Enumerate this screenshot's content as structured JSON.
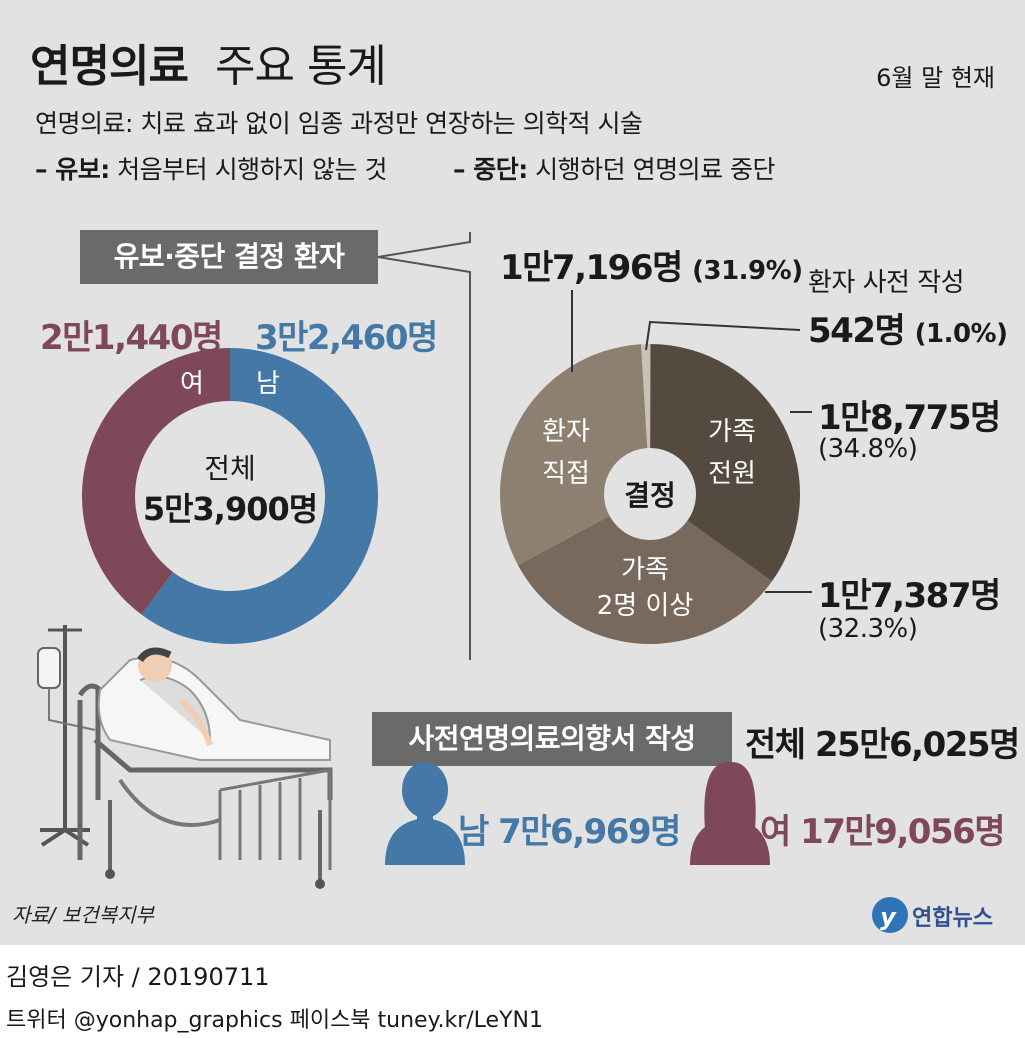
{
  "header": {
    "title_bold": "연명의료",
    "title_rest": "주요 통계",
    "as_of": "6월 말 현재",
    "definition_term": "연명의료:",
    "definition_text": "치료 효과 없이 임종 과정만 연장하는 의학적 시술",
    "withhold_term": "– 유보:",
    "withhold_text": "처음부터 시행하지 않는 것",
    "stop_term": "– 중단:",
    "stop_text": "시행하던 연명의료 중단"
  },
  "sections": {
    "patients_label": "유보·중단 결정 환자",
    "advance_label": "사전연명의료의향서 작성",
    "advance_total": "전체 25만6,025명",
    "advance_male": "남 7만6,969명",
    "advance_female": "여 17만9,056명"
  },
  "colors": {
    "female": "#7e4858",
    "male": "#4478a6",
    "family_all": "#544a40",
    "family_two": "#78695c",
    "patient_direct": "#8e8070",
    "patient_advance": "#c9c1b4",
    "label_box": "#6a6a6a"
  },
  "chart_data": [
    {
      "type": "pie",
      "variant": "donut",
      "center_label": "전체",
      "center_value": "5만3,900명",
      "slices": [
        {
          "name": "남",
          "value": 32460,
          "label": "3만2,460명"
        },
        {
          "name": "여",
          "value": 21440,
          "label": "2만1,440명"
        }
      ]
    },
    {
      "type": "pie",
      "center_label": "결정",
      "slices": [
        {
          "name": "환자 사전 작성",
          "value": 542,
          "label": "542명",
          "pct": "(1.0%)"
        },
        {
          "name": "가족 전원",
          "value": 18775,
          "label": "1만8,775명",
          "pct": "(34.8%)"
        },
        {
          "name": "가족 2명 이상",
          "value": 17387,
          "label": "1만7,387명",
          "pct": "(32.3%)"
        },
        {
          "name": "환자 직접",
          "value": 17196,
          "label": "1만7,196명",
          "pct": "(31.9%)"
        }
      ]
    }
  ],
  "footer": {
    "source": "자료/ 보건복지부",
    "logo": "연합뉴스",
    "byline": "김영은 기자 / 20190711",
    "social": "트위터 @yonhap_graphics  페이스북 tuney.kr/LeYN1"
  }
}
